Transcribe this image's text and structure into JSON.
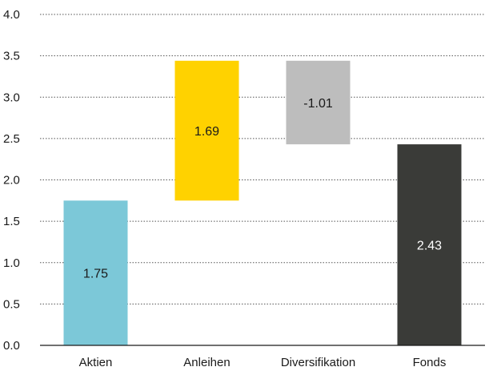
{
  "chart_data": {
    "type": "bar",
    "subtype": "waterfall",
    "title": "",
    "xlabel": "",
    "ylabel": "",
    "ylim": [
      0,
      4.0
    ],
    "yticks": [
      "0.0",
      "0.5",
      "1.0",
      "1.5",
      "2.0",
      "2.5",
      "3.0",
      "3.5",
      "4.0"
    ],
    "grid": "horizontal-dotted",
    "legend": "none",
    "categories": [
      "Aktien",
      "Anleihen",
      "Diversifikation",
      "Fonds"
    ],
    "bars": [
      {
        "category": "Aktien",
        "start": 0,
        "end": 1.75,
        "label": "1.75",
        "color": "#7cc8d8",
        "label_color": "#1a1a1a"
      },
      {
        "category": "Anleihen",
        "start": 1.75,
        "end": 3.44,
        "label": "1.69",
        "color": "#ffd200",
        "label_color": "#1a1a1a"
      },
      {
        "category": "Diversifikation",
        "start": 3.44,
        "end": 2.43,
        "label": "-1.01",
        "color": "#bdbdbd",
        "label_color": "#1a1a1a"
      },
      {
        "category": "Fonds",
        "start": 0,
        "end": 2.43,
        "label": "2.43",
        "color": "#3a3b38",
        "label_color": "#ffffff"
      }
    ]
  }
}
